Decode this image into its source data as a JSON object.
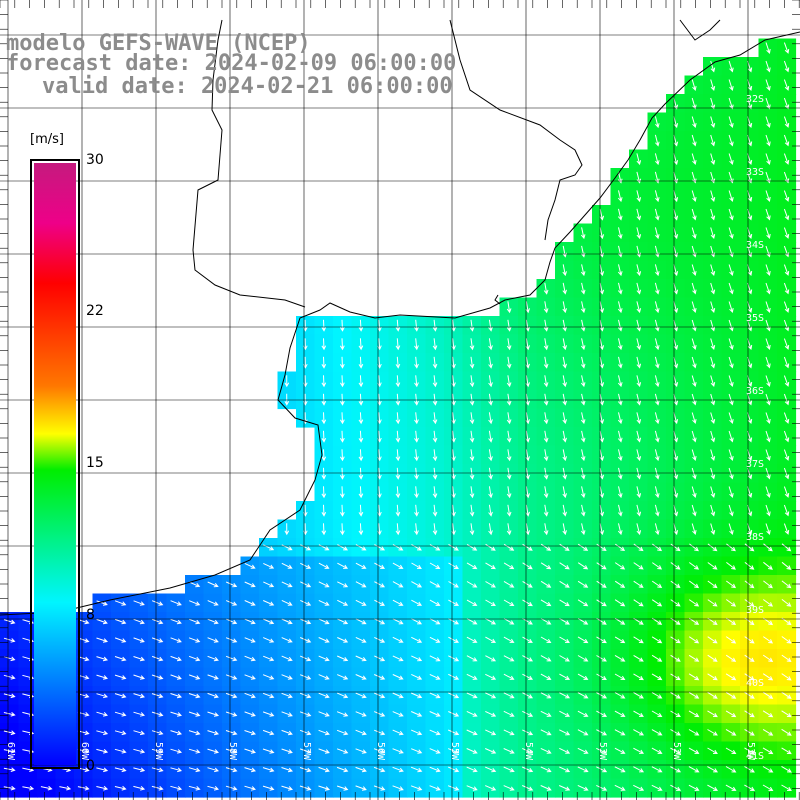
{
  "title": {
    "line1": "modelo GEFS-WAVE (NCEP)",
    "line2": "forecast date: 2024-02-09 06:00:00",
    "line3": "valid date: 2024-02-21 06:00:00"
  },
  "colorbar": {
    "units": "[m/s]",
    "ticks": [
      "30",
      "22",
      "15",
      "8",
      "0"
    ],
    "tick_values": [
      30,
      22,
      15,
      8,
      0
    ],
    "range": [
      0,
      30
    ],
    "colors": [
      "#0000ff",
      "#00f5ff",
      "#00ee00",
      "#ffff00",
      "#ff7700",
      "#ff0000",
      "#c51a7e"
    ]
  },
  "lat_labels": [
    "32S",
    "33S",
    "34S",
    "35S",
    "36S",
    "37S",
    "38S",
    "39S",
    "40S",
    "41S"
  ],
  "lon_labels": [
    "61W",
    "60W",
    "59W",
    "58W",
    "57W",
    "56W",
    "55W",
    "54W",
    "53W",
    "52W",
    "51W"
  ],
  "colors": {
    "land": "#ffffff",
    "coast": "#000000",
    "grid": "#000000",
    "vector": "#ffffff",
    "title": "#8c8c8c"
  },
  "legend": {
    "placement": "left"
  }
}
